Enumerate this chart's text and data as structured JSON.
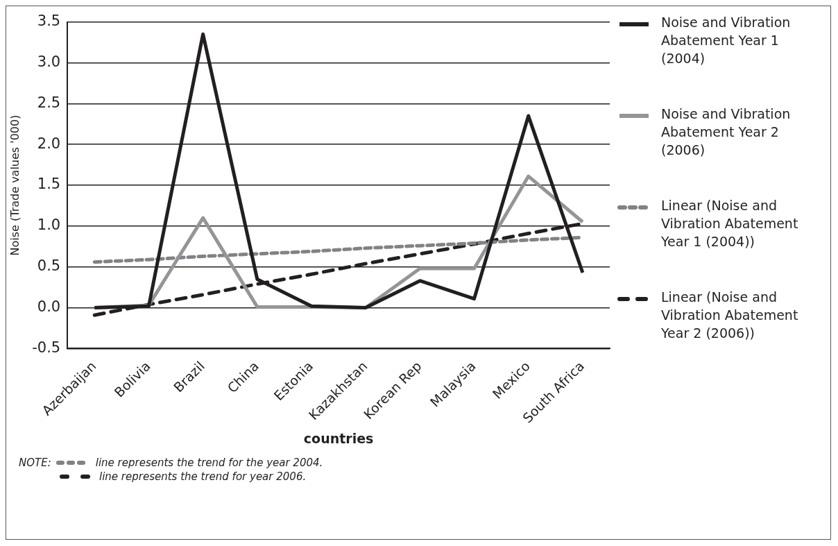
{
  "chart_data": {
    "type": "line",
    "ylabel": "Noise (Trade values '000)",
    "xlabel": "countries",
    "categories": [
      "Azerbaijan",
      "Bolivia",
      "Brazil",
      "China",
      "Estonia",
      "Kazakhstan",
      "Korean Rep",
      "Malaysia",
      "Mexico",
      "South Africa"
    ],
    "series": [
      {
        "name": "Noise and Vibration Abatement Year 1 (2004)",
        "color": "#231f20",
        "values": [
          0,
          0.02,
          3.35,
          0.35,
          0.02,
          0,
          0.33,
          0.11,
          2.35,
          0.43
        ]
      },
      {
        "name": "Noise and Vibration Abatement Year 2 (2006)",
        "color": "#939598",
        "values": [
          0,
          0.03,
          1.1,
          0.01,
          0.01,
          0,
          0.48,
          0.48,
          1.61,
          1.05
        ]
      },
      {
        "name": "Linear (Noise and Vibration Abatement Year 1 (2004))",
        "color": "#808285",
        "line_style": "dotted",
        "values": [
          0.56,
          0.59,
          0.63,
          0.66,
          0.69,
          0.73,
          0.76,
          0.79,
          0.83,
          0.86
        ]
      },
      {
        "name": "Linear (Noise and Vibration Abatement Year 2 (2006))",
        "color": "#231f20",
        "line_style": "dashed",
        "values": [
          -0.09,
          0.04,
          0.16,
          0.29,
          0.41,
          0.54,
          0.66,
          0.78,
          0.91,
          1.03
        ]
      }
    ],
    "ylim": [
      -0.5,
      3.5
    ],
    "yticks": [
      {
        "value": -0.5,
        "label": "-0.5"
      },
      {
        "value": 0,
        "label": "0.0"
      },
      {
        "value": 0.5,
        "label": "0.5"
      },
      {
        "value": 1,
        "label": "1.0"
      },
      {
        "value": 1.5,
        "label": "1.5"
      },
      {
        "value": 2,
        "label": "2.0"
      },
      {
        "value": 2.5,
        "label": "2.5"
      },
      {
        "value": 3,
        "label": "3.0"
      },
      {
        "value": 3.5,
        "label": "3.5"
      }
    ],
    "grid": "y",
    "legend": "right",
    "marker": "none",
    "annotations": [
      "NOTE:",
      "line represents the trend  for the year 2004.",
      "line represents the trend for year 2006."
    ]
  }
}
